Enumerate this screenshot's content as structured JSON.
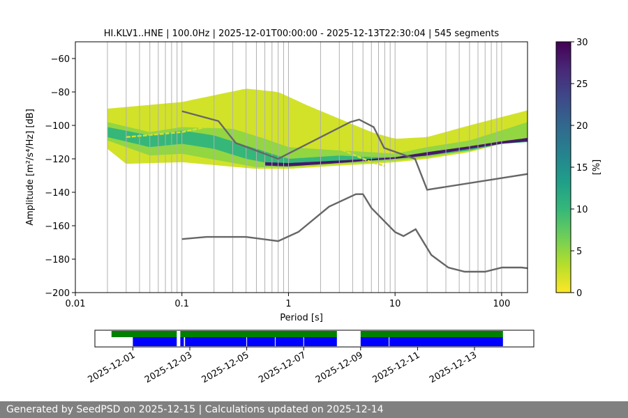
{
  "chart_data": {
    "type": "heatmap",
    "title": "HI.KLV1..HNE | 100.0Hz | 2025-12-01T00:00:00 - 2025-12-13T22:30:04 | 545 segments",
    "xlabel": "Period [s]",
    "ylabel": "Amplitude [m²/s⁴/Hz] [dB]",
    "x_scale": "log",
    "xlim": [
      0.01,
      175
    ],
    "ylim": [
      -200,
      -50
    ],
    "x_ticks": [
      {
        "value": 0.01,
        "label": "0.01"
      },
      {
        "value": 0.1,
        "label": "0.1"
      },
      {
        "value": 1,
        "label": "1"
      },
      {
        "value": 10,
        "label": "10"
      },
      {
        "value": 100,
        "label": "100"
      }
    ],
    "y_ticks": [
      {
        "value": -60,
        "label": "−60"
      },
      {
        "value": -80,
        "label": "−80"
      },
      {
        "value": -100,
        "label": "−100"
      },
      {
        "value": -120,
        "label": "−120"
      },
      {
        "value": -140,
        "label": "−140"
      },
      {
        "value": -160,
        "label": "−160"
      },
      {
        "value": -180,
        "label": "−180"
      },
      {
        "value": -200,
        "label": "−200"
      }
    ],
    "vertical_gridlines_period": [
      0.02,
      0.03,
      0.04,
      0.05,
      0.06,
      0.07,
      0.08,
      0.09,
      0.1,
      0.2,
      0.3,
      0.4,
      0.5,
      0.6,
      0.7,
      0.8,
      0.9,
      1,
      2,
      3,
      4,
      5,
      6,
      7,
      8,
      9,
      10,
      20,
      30,
      40,
      50,
      60,
      70,
      80,
      90,
      100
    ],
    "grid": "vertical",
    "colorbar": {
      "label": "[%]",
      "min": 0,
      "max": 30,
      "ticks": [
        {
          "value": 0,
          "label": "0"
        },
        {
          "value": 5,
          "label": "5"
        },
        {
          "value": 10,
          "label": "10"
        },
        {
          "value": 15,
          "label": "15"
        },
        {
          "value": 20,
          "label": "20"
        },
        {
          "value": 25,
          "label": "25"
        },
        {
          "value": 30,
          "label": "30"
        }
      ],
      "colormap": "viridis_r",
      "colors": [
        "#fde725",
        "#b5de2b",
        "#6ece58",
        "#35b779",
        "#1f9e89",
        "#26828e",
        "#31688e",
        "#3e4989",
        "#482878",
        "#440154"
      ]
    },
    "high_noise_model": {
      "color": "#666666",
      "points": [
        [
          0.1,
          -91.5
        ],
        [
          0.22,
          -97.4
        ],
        [
          0.32,
          -110.5
        ],
        [
          0.8,
          -120
        ],
        [
          3.8,
          -98
        ],
        [
          4.6,
          -96.5
        ],
        [
          6.3,
          -101
        ],
        [
          7.9,
          -113.5
        ],
        [
          15.4,
          -120
        ],
        [
          20,
          -138.5
        ],
        [
          354,
          -126
        ]
      ]
    },
    "low_noise_model": {
      "color": "#666666",
      "points": [
        [
          0.1,
          -168
        ],
        [
          0.17,
          -166.7
        ],
        [
          0.4,
          -166.7
        ],
        [
          0.8,
          -169.2
        ],
        [
          1.24,
          -163.7
        ],
        [
          2.4,
          -148.6
        ],
        [
          4.3,
          -141.1
        ],
        [
          5.0,
          -141.1
        ],
        [
          6.0,
          -149.4
        ],
        [
          10,
          -163.8
        ],
        [
          12,
          -166.2
        ],
        [
          15.6,
          -162.1
        ],
        [
          21.9,
          -177.5
        ],
        [
          31.6,
          -185
        ],
        [
          45,
          -187.5
        ],
        [
          70,
          -187.5
        ],
        [
          101,
          -185
        ],
        [
          154,
          -185
        ],
        [
          328,
          -187.5
        ]
      ]
    },
    "psd_bands": [
      {
        "level": 2,
        "lower_db": [
          [
            0.02,
            -114
          ],
          [
            0.03,
            -123
          ],
          [
            0.1,
            -122
          ],
          [
            0.5,
            -126
          ],
          [
            1,
            -126
          ],
          [
            3,
            -124
          ],
          [
            6,
            -123
          ],
          [
            10,
            -122
          ],
          [
            20,
            -120
          ],
          [
            50,
            -116
          ],
          [
            100,
            -111
          ],
          [
            175,
            -106
          ]
        ],
        "upper_db": [
          [
            0.02,
            -90
          ],
          [
            0.03,
            -89
          ],
          [
            0.1,
            -86
          ],
          [
            0.2,
            -82
          ],
          [
            0.4,
            -78
          ],
          [
            0.8,
            -80
          ],
          [
            1.5,
            -88
          ],
          [
            3,
            -96
          ],
          [
            6,
            -104
          ],
          [
            10,
            -108
          ],
          [
            20,
            -107
          ],
          [
            50,
            -100
          ],
          [
            100,
            -95
          ],
          [
            175,
            -91
          ]
        ]
      },
      {
        "level": 5,
        "lower_db": [
          [
            0.02,
            -109
          ],
          [
            0.05,
            -118
          ],
          [
            0.1,
            -117
          ],
          [
            0.5,
            -125
          ],
          [
            1,
            -125
          ],
          [
            3,
            -123
          ],
          [
            6,
            -122
          ],
          [
            10,
            -121
          ],
          [
            20,
            -119
          ],
          [
            50,
            -115
          ],
          [
            100,
            -111
          ],
          [
            175,
            -108
          ]
        ],
        "upper_db": [
          [
            0.02,
            -98
          ],
          [
            0.05,
            -104
          ],
          [
            0.1,
            -101
          ],
          [
            0.3,
            -102
          ],
          [
            0.6,
            -108
          ],
          [
            1,
            -113
          ],
          [
            3,
            -115
          ],
          [
            6,
            -116
          ],
          [
            10,
            -117
          ],
          [
            20,
            -113
          ],
          [
            50,
            -109
          ],
          [
            100,
            -103
          ],
          [
            175,
            -98
          ]
        ]
      },
      {
        "level": 10,
        "lower_db": [
          [
            0.02,
            -107
          ],
          [
            0.05,
            -113
          ],
          [
            0.1,
            -111
          ],
          [
            0.2,
            -114
          ],
          [
            0.4,
            -120
          ],
          [
            0.7,
            -123
          ],
          [
            1,
            -124
          ],
          [
            3,
            -122
          ],
          [
            6,
            -121
          ],
          [
            10,
            -120
          ],
          [
            20,
            -118
          ],
          [
            50,
            -115
          ],
          [
            100,
            -111
          ],
          [
            175,
            -110
          ]
        ],
        "upper_db": [
          [
            0.02,
            -101
          ],
          [
            0.05,
            -106
          ],
          [
            0.1,
            -103
          ],
          [
            0.2,
            -106
          ],
          [
            0.4,
            -112
          ],
          [
            0.7,
            -117
          ],
          [
            1,
            -120
          ],
          [
            3,
            -118
          ],
          [
            6,
            -119
          ],
          [
            10,
            -119
          ],
          [
            20,
            -117
          ],
          [
            50,
            -114
          ],
          [
            100,
            -110
          ],
          [
            175,
            -108
          ]
        ]
      },
      {
        "level": 28,
        "lower_db": [
          [
            0.6,
            -124
          ],
          [
            1,
            -124.5
          ],
          [
            3,
            -122.5
          ],
          [
            6,
            -121
          ],
          [
            10,
            -120
          ],
          [
            20,
            -118
          ],
          [
            50,
            -114
          ],
          [
            100,
            -111
          ],
          [
            175,
            -109.5
          ]
        ],
        "upper_db": [
          [
            0.6,
            -122
          ],
          [
            1,
            -122.5
          ],
          [
            3,
            -121
          ],
          [
            6,
            -120
          ],
          [
            10,
            -119
          ],
          [
            20,
            -116
          ],
          [
            50,
            -112.5
          ],
          [
            100,
            -109.5
          ],
          [
            175,
            -107.5
          ]
        ]
      }
    ],
    "psd_isolated_modes": [
      {
        "level": 2,
        "db_offset_from_upper": -18
      },
      {
        "level": 2,
        "db_offset_from_upper": -10
      }
    ],
    "data_availability": {
      "x_ticks": [
        {
          "value": "2025-12-01",
          "label": "2025-12-01"
        },
        {
          "value": "2025-12-03",
          "label": "2025-12-03"
        },
        {
          "value": "2025-12-05",
          "label": "2025-12-05"
        },
        {
          "value": "2025-12-07",
          "label": "2025-12-07"
        },
        {
          "value": "2025-12-09",
          "label": "2025-12-09"
        },
        {
          "value": "2025-12-11",
          "label": "2025-12-11"
        },
        {
          "value": "2025-12-13",
          "label": "2025-12-13"
        }
      ],
      "xlim": [
        "2025-11-29T16:00",
        "2025-12-15T02:00"
      ],
      "data_segments": {
        "color": "#008000",
        "spans": [
          [
            "2025-11-30T06:00",
            "2025-12-02T13:00"
          ],
          [
            "2025-12-02T16:00",
            "2025-12-08T04:00"
          ],
          [
            "2025-12-09T00:00",
            "2025-12-14T00:00"
          ]
        ]
      },
      "psd_segments": {
        "color": "#0000ff",
        "spans": [
          [
            "2025-12-01T00:00",
            "2025-12-02T13:00"
          ],
          [
            "2025-12-02T16:00",
            "2025-12-02T19:00"
          ],
          [
            "2025-12-02T20:00",
            "2025-12-08T04:00"
          ],
          [
            "2025-12-09T00:00",
            "2025-12-14T00:00"
          ]
        ],
        "gaps": [
          "2025-12-05T00:00",
          "2025-12-06T00:00",
          "2025-12-07T00:00",
          "2025-12-10T00:00"
        ]
      }
    }
  },
  "footer": {
    "text": "Generated by SeedPSD on 2025-12-15 | Calculations updated on 2025-12-14"
  }
}
